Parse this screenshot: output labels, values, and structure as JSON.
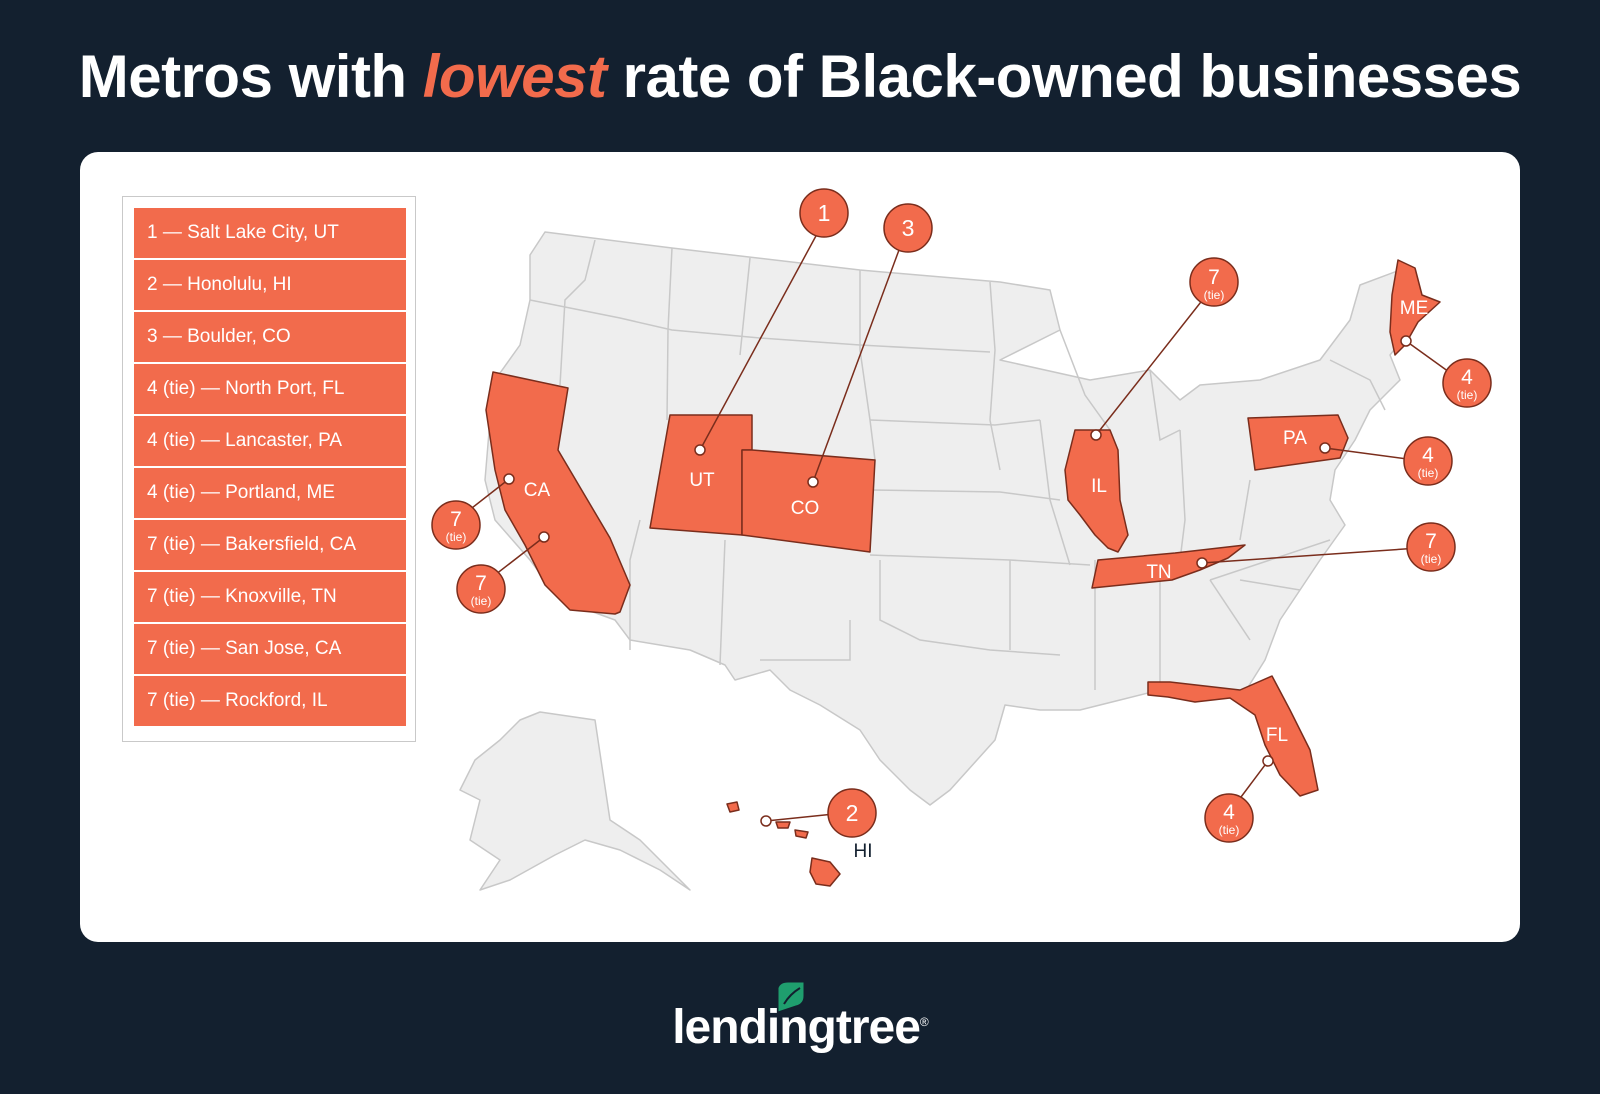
{
  "title": {
    "before": "Metros with ",
    "highlight": "lowest",
    "after": " rate of Black-owned businesses"
  },
  "legend": [
    "1 — Salt Lake City, UT",
    "2 — Honolulu, HI",
    "3 — Boulder, CO",
    "4 (tie) — North Port, FL",
    "4 (tie) — Lancaster, PA",
    "4 (tie) — Portland, ME",
    "7 (tie) — Bakersfield, CA",
    "7 (tie) — Knoxville, TN",
    "7 (tie) — San Jose, CA",
    "7 (tie) — Rockford, IL"
  ],
  "states_highlighted": [
    {
      "abbr": "UT"
    },
    {
      "abbr": "CO"
    },
    {
      "abbr": "CA"
    },
    {
      "abbr": "IL"
    },
    {
      "abbr": "TN"
    },
    {
      "abbr": "PA"
    },
    {
      "abbr": "ME"
    },
    {
      "abbr": "FL"
    },
    {
      "abbr": "HI"
    }
  ],
  "markers": [
    {
      "rank": "1",
      "tie": "",
      "metro": "Salt Lake City, UT"
    },
    {
      "rank": "3",
      "tie": "",
      "metro": "Boulder, CO"
    },
    {
      "rank": "7",
      "tie": "(tie)",
      "metro": "Rockford, IL"
    },
    {
      "rank": "4",
      "tie": "(tie)",
      "metro": "Portland, ME"
    },
    {
      "rank": "4",
      "tie": "(tie)",
      "metro": "Lancaster, PA"
    },
    {
      "rank": "7",
      "tie": "(tie)",
      "metro": "Knoxville, TN"
    },
    {
      "rank": "7",
      "tie": "(tie)",
      "metro": "San Jose, CA"
    },
    {
      "rank": "7",
      "tie": "(tie)",
      "metro": "Bakersfield, CA"
    },
    {
      "rank": "2",
      "tie": "",
      "metro": "Honolulu, HI"
    },
    {
      "rank": "4",
      "tie": "(tie)",
      "metro": "North Port, FL"
    }
  ],
  "colors": {
    "background": "#13202f",
    "accent": "#f26b4c",
    "state_fill": "#eeeeee",
    "state_stroke": "#c8c8c8",
    "highlight_stroke": "#7a2d1c"
  },
  "logo": {
    "text": "lendingtree",
    "mark": "®",
    "icon": "leaf-icon"
  }
}
